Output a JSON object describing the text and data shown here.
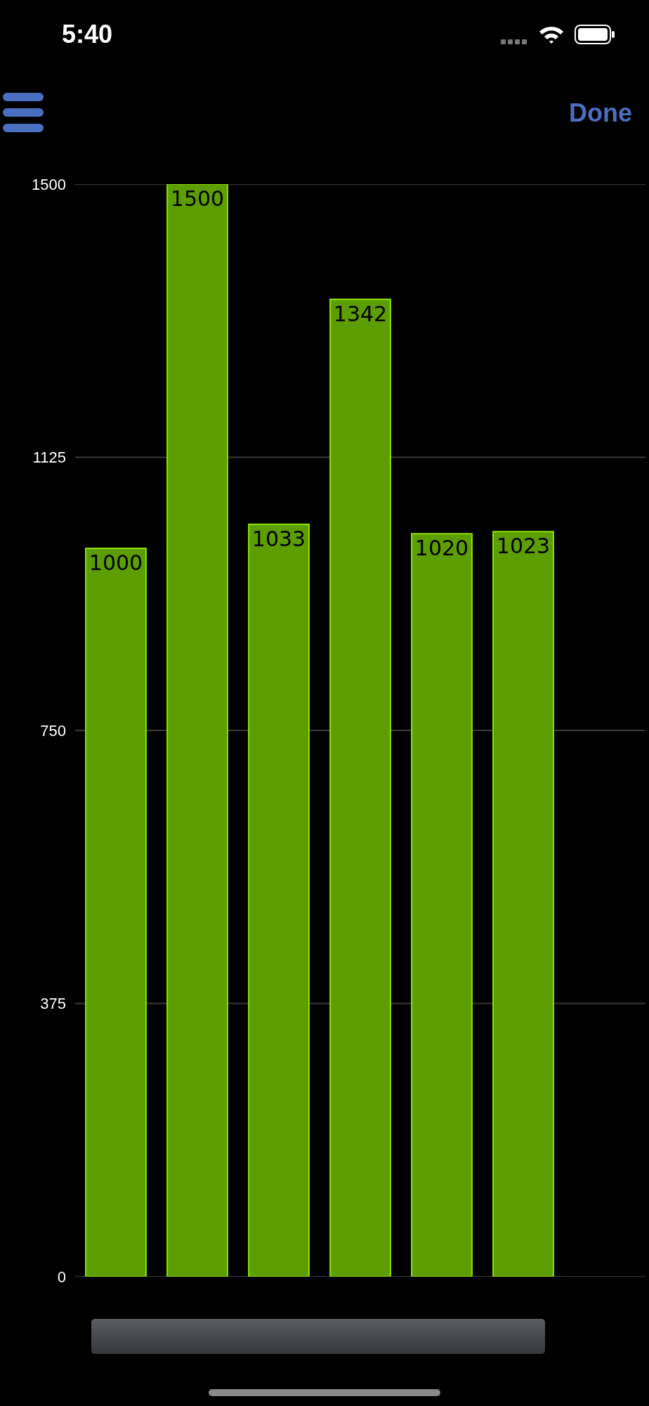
{
  "chart_data": {
    "type": "bar",
    "categories": [
      null,
      null,
      null,
      null,
      null,
      null
    ],
    "values": [
      1000,
      1500,
      1033,
      1342,
      1020,
      1023
    ],
    "color": "#5c9e00",
    "ylim": [
      0,
      1500
    ],
    "yticks": [
      0,
      375,
      750,
      1125,
      1500
    ],
    "grid": "y",
    "data_labels": true,
    "tick_labels": "y",
    "annotations": [
      "5:40",
      "Done"
    ]
  }
}
